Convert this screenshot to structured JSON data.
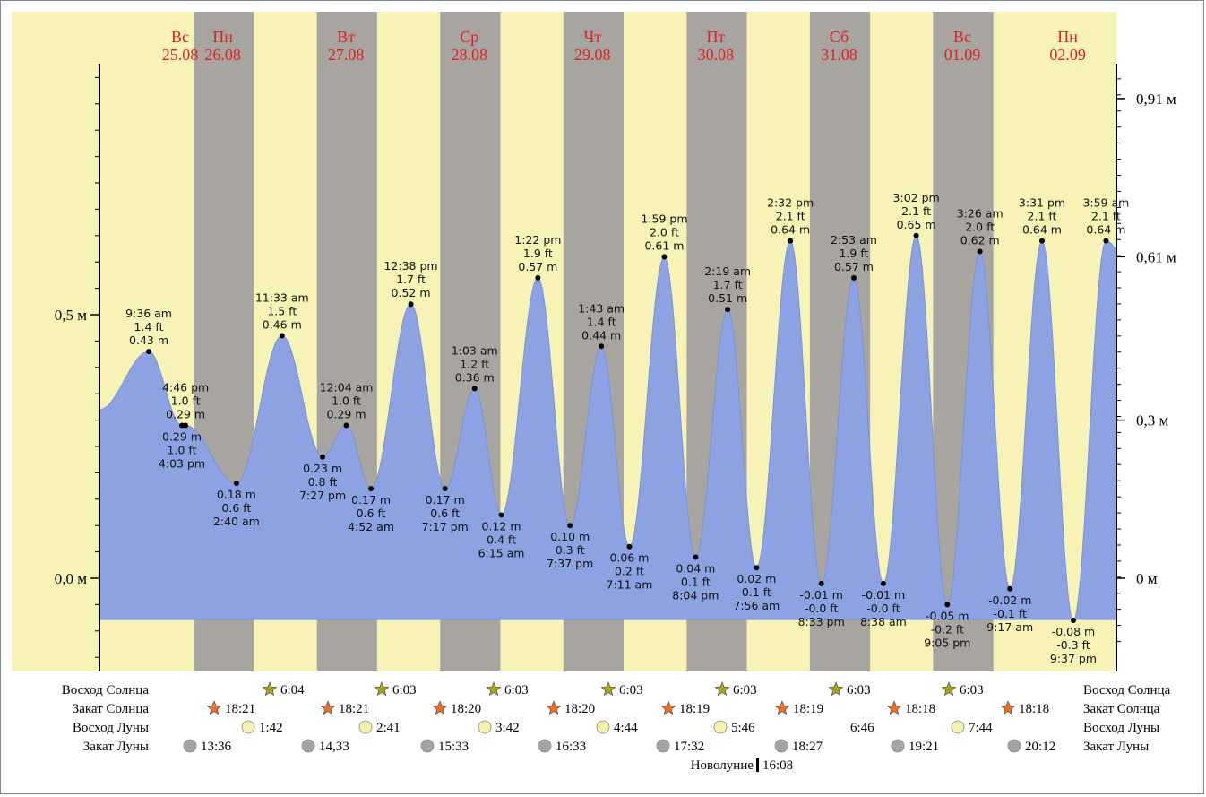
{
  "chart_data": {
    "type": "area",
    "days": [
      {
        "name": "Вс",
        "date": "25.08"
      },
      {
        "name": "Пн",
        "date": "26.08"
      },
      {
        "name": "Вт",
        "date": "27.08"
      },
      {
        "name": "Ср",
        "date": "28.08"
      },
      {
        "name": "Чт",
        "date": "29.08"
      },
      {
        "name": "Пт",
        "date": "30.08"
      },
      {
        "name": "Сб",
        "date": "31.08"
      },
      {
        "name": "Вс",
        "date": "01.09"
      },
      {
        "name": "Пн",
        "date": "02.09"
      }
    ],
    "left_axis": {
      "ticks": [
        {
          "value": 0.5,
          "label": "0,5 м"
        },
        {
          "value": 0.0,
          "label": "0,0 м"
        }
      ]
    },
    "right_axis": {
      "ticks": [
        {
          "value": 0.91,
          "label": "0,91 м"
        },
        {
          "value": 0.61,
          "label": "0,61 м"
        },
        {
          "value": 0.3,
          "label": "0,3 м"
        },
        {
          "value": 0.0,
          "label": "0 м"
        }
      ]
    },
    "ylim": [
      -0.16,
      1.0
    ],
    "x_hours_range": [
      0,
      198
    ],
    "tides": [
      {
        "t": 9.6,
        "m": 0.43,
        "time": "9:36 am",
        "ft": "1.4 ft",
        "label_m": "0.43 m",
        "kind": "high"
      },
      {
        "t": 16.05,
        "m": 0.29,
        "time": "4:03 pm",
        "ft": "1.0 ft",
        "label_m": "0.29 m",
        "kind": "low"
      },
      {
        "t": 16.77,
        "m": 0.29,
        "time": "4:46 pm",
        "ft": "1.0 ft",
        "label_m": "0.29 m",
        "kind": "high"
      },
      {
        "t": 26.67,
        "m": 0.18,
        "time": "2:40 am",
        "ft": "0.6 ft",
        "label_m": "0.18 m",
        "kind": "low"
      },
      {
        "t": 35.55,
        "m": 0.46,
        "time": "11:33 am",
        "ft": "1.5 ft",
        "label_m": "0.46 m",
        "kind": "high"
      },
      {
        "t": 43.45,
        "m": 0.23,
        "time": "7:27 pm",
        "ft": "0.8 ft",
        "label_m": "0.23 m",
        "kind": "low"
      },
      {
        "t": 48.07,
        "m": 0.29,
        "time": "12:04 am",
        "ft": "1.0 ft",
        "label_m": "0.29 m",
        "kind": "high"
      },
      {
        "t": 52.87,
        "m": 0.17,
        "time": "4:52 am",
        "ft": "0.6 ft",
        "label_m": "0.17 m",
        "kind": "low"
      },
      {
        "t": 60.63,
        "m": 0.52,
        "time": "12:38 pm",
        "ft": "1.7 ft",
        "label_m": "0.52 m",
        "kind": "high"
      },
      {
        "t": 67.28,
        "m": 0.17,
        "time": "7:17 pm",
        "ft": "0.6 ft",
        "label_m": "0.17 m",
        "kind": "low"
      },
      {
        "t": 73.05,
        "m": 0.36,
        "time": "1:03 am",
        "ft": "1.2 ft",
        "label_m": "0.36 m",
        "kind": "high"
      },
      {
        "t": 78.25,
        "m": 0.12,
        "time": "6:15 am",
        "ft": "0.4 ft",
        "label_m": "0.12 m",
        "kind": "low"
      },
      {
        "t": 85.37,
        "m": 0.57,
        "time": "1:22 pm",
        "ft": "1.9 ft",
        "label_m": "0.57 m",
        "kind": "high"
      },
      {
        "t": 91.62,
        "m": 0.1,
        "time": "7:37 pm",
        "ft": "0.3 ft",
        "label_m": "0.10 m",
        "kind": "low"
      },
      {
        "t": 97.72,
        "m": 0.44,
        "time": "1:43 am",
        "ft": "1.4 ft",
        "label_m": "0.44 m",
        "kind": "high"
      },
      {
        "t": 103.18,
        "m": 0.06,
        "time": "7:11 am",
        "ft": "0.2 ft",
        "label_m": "0.06 m",
        "kind": "low"
      },
      {
        "t": 109.98,
        "m": 0.61,
        "time": "1:59 pm",
        "ft": "2.0 ft",
        "label_m": "0.61 m",
        "kind": "high"
      },
      {
        "t": 116.07,
        "m": 0.04,
        "time": "8:04 pm",
        "ft": "0.1 ft",
        "label_m": "0.04 m",
        "kind": "low"
      },
      {
        "t": 122.32,
        "m": 0.51,
        "time": "2:19 am",
        "ft": "1.7 ft",
        "label_m": "0.51 m",
        "kind": "high"
      },
      {
        "t": 127.93,
        "m": 0.02,
        "time": "7:56 am",
        "ft": "0.1 ft",
        "label_m": "0.02 m",
        "kind": "low"
      },
      {
        "t": 134.53,
        "m": 0.64,
        "time": "2:32 pm",
        "ft": "2.1 ft",
        "label_m": "0.64 m",
        "kind": "high"
      },
      {
        "t": 140.55,
        "m": -0.01,
        "time": "8:33 pm",
        "ft": "-0.0 ft",
        "label_m": "-0.01 m",
        "kind": "low"
      },
      {
        "t": 146.88,
        "m": 0.57,
        "time": "2:53 am",
        "ft": "1.9 ft",
        "label_m": "0.57 m",
        "kind": "high"
      },
      {
        "t": 152.63,
        "m": -0.01,
        "time": "8:38 am",
        "ft": "-0.0 ft",
        "label_m": "-0.01 m",
        "kind": "low"
      },
      {
        "t": 159.03,
        "m": 0.65,
        "time": "3:02 pm",
        "ft": "2.1 ft",
        "label_m": "0.65 m",
        "kind": "high"
      },
      {
        "t": 165.08,
        "m": -0.05,
        "time": "9:05 pm",
        "ft": "-0.2 ft",
        "label_m": "-0.05 m",
        "kind": "low"
      },
      {
        "t": 171.43,
        "m": 0.62,
        "time": "3:26 am",
        "ft": "2.0 ft",
        "label_m": "0.62 m",
        "kind": "high"
      },
      {
        "t": 177.28,
        "m": -0.02,
        "time": "9:17 am",
        "ft": "-0.1 ft",
        "label_m": "-0.02 m",
        "kind": "low"
      },
      {
        "t": 183.52,
        "m": 0.64,
        "time": "3:31 pm",
        "ft": "2.1 ft",
        "label_m": "0.64 m",
        "kind": "high"
      },
      {
        "t": 189.62,
        "m": -0.08,
        "time": "9:37 pm",
        "ft": "-0.3 ft",
        "label_m": "-0.08 m",
        "kind": "low"
      },
      {
        "t": 195.98,
        "m": 0.64,
        "time": "3:59 am",
        "ft": "2.1 ft",
        "label_m": "0.64 m",
        "kind": "high"
      }
    ],
    "night_intervals_hours": [
      [
        18.35,
        30.07
      ],
      [
        42.35,
        54.05
      ],
      [
        66.33,
        78.05
      ],
      [
        90.33,
        102.05
      ],
      [
        114.32,
        126.05
      ],
      [
        138.32,
        150.05
      ],
      [
        162.3,
        174.05
      ]
    ],
    "colors": {
      "day_bg": "#f7f3b7",
      "night_bg": "#a8a4a0",
      "water": "#8ca2e3",
      "day_label": "#e02020"
    },
    "astro": {
      "sunrise": {
        "label": "Восход Солнца",
        "times": [
          "6:04",
          "6:03",
          "6:03",
          "6:03",
          "6:03",
          "6:03",
          "6:03"
        ]
      },
      "sunset": {
        "label": "Закат Солнца",
        "times": [
          "18:21",
          "18:21",
          "18:20",
          "18:20",
          "18:19",
          "18:19",
          "18:18",
          "18:18"
        ]
      },
      "moonrise": {
        "label": "Восход Луны",
        "times": [
          "1:42",
          "2:41",
          "3:42",
          "4:44",
          "5:46",
          "6:46",
          "7:44"
        ]
      },
      "moonset": {
        "label": "Закат Луны",
        "times": [
          "13:36",
          "14,33",
          "15:33",
          "16:33",
          "17:32",
          "18:27",
          "19:21",
          "20:12"
        ]
      }
    },
    "new_moon": {
      "label": "Новолуние",
      "time": "16:08"
    }
  }
}
